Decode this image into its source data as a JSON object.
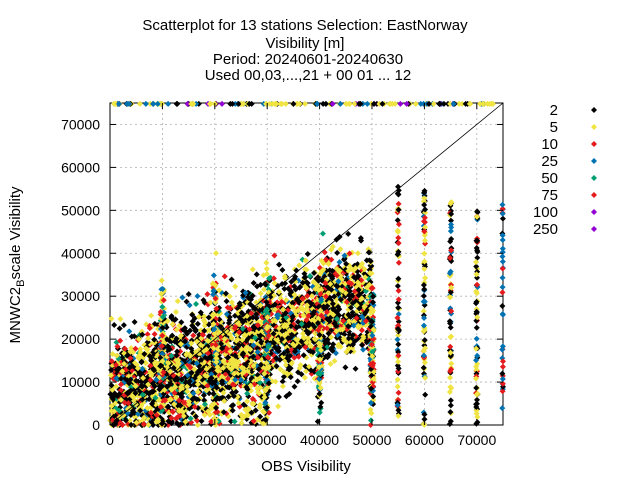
{
  "chart_data": {
    "type": "scatter",
    "title": [
      "Scatterplot for   13 stations Selection: EastNorway",
      "Visibility [m]",
      "Period: 20240601-20240630",
      "Used 00,03,...,21 + 00 01 ... 12"
    ],
    "xlabel": "OBS Visibility",
    "ylabel_main": "MNWC2",
    "ylabel_sub": "B",
    "ylabel_tail": "scale Visibility",
    "xlim": [
      0,
      75000
    ],
    "ylim": [
      0,
      75000
    ],
    "xticks": [
      "0",
      "10000",
      "20000",
      "30000",
      "40000",
      "50000",
      "60000",
      "70000"
    ],
    "yticks": [
      "0",
      "10000",
      "20000",
      "30000",
      "40000",
      "50000",
      "60000",
      "70000"
    ],
    "grid": true,
    "diagonal": "y=x",
    "legend_position": "right",
    "series": [
      {
        "name": "2",
        "color": "#000000"
      },
      {
        "name": "5",
        "color": "#f0e442"
      },
      {
        "name": "10",
        "color": "#e41a1c"
      },
      {
        "name": "25",
        "color": "#0072b2"
      },
      {
        "name": "50",
        "color": "#009e73"
      },
      {
        "name": "75",
        "color": "#e41a1c"
      },
      {
        "name": "100",
        "color": "#9400d3"
      },
      {
        "name": "250",
        "color": "#9400d3"
      }
    ],
    "point_summary": "Dense scatter; observed visibility clusters at 0-50000 m with vertical columns at 10000, 20000, 30000, 40000, 50000, 55000, 60000, 65000, 70000 and 75000 m; many forecasts capped at 75000 m."
  }
}
